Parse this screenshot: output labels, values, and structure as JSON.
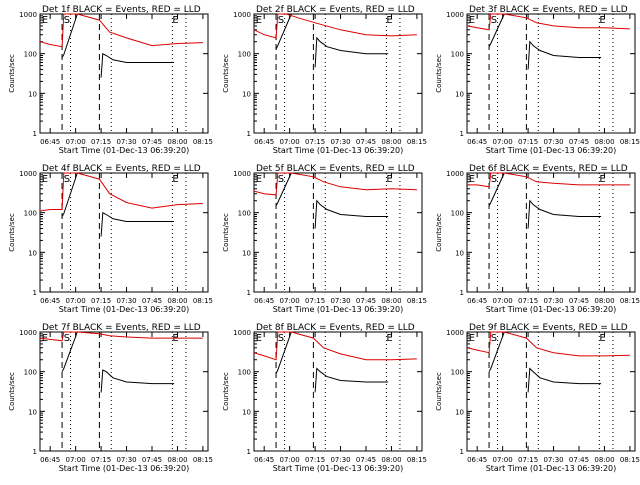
{
  "figure": {
    "panels": [
      {
        "title": "Det 1f BLACK = Events, RED = LLD"
      },
      {
        "title": "Det 2f BLACK = Events, RED = LLD"
      },
      {
        "title": "Det 3f BLACK = Events, RED = LLD"
      },
      {
        "title": "Det 4f BLACK = Events, RED = LLD"
      },
      {
        "title": "Det 5f BLACK = Events, RED = LLD"
      },
      {
        "title": "Det 6f BLACK = Events, RED = LLD"
      },
      {
        "title": "Det 7f BLACK = Events, RED = LLD"
      },
      {
        "title": "Det 8f BLACK = Events, RED = LLD"
      },
      {
        "title": "Det 9f BLACK = Events, RED = LLD"
      }
    ],
    "xlabel": "Start Time (01-Dec-13 06:39:20)",
    "ylabel": "Counts/sec",
    "x_ticks": [
      "06:45",
      "07:00",
      "07:15",
      "07:30",
      "07:45",
      "08:00",
      "08:15"
    ],
    "y_ticks": [
      "1",
      "10",
      "100",
      "1000"
    ],
    "markers": [
      "E",
      "S",
      "E"
    ],
    "colors": {
      "events": "#000000",
      "lld": "#dd0000"
    }
  },
  "chart_data": [
    {
      "type": "line",
      "title": "Det 1f BLACK = Events, RED = LLD",
      "xlabel": "Start Time (01-Dec-13 06:39:20)",
      "ylabel": "Counts/sec",
      "yscale": "log",
      "ylim": [
        1,
        1000
      ],
      "xlim": [
        "06:39",
        "08:18"
      ],
      "series": [
        {
          "name": "Events",
          "color": "#000000",
          "x": [
            "06:52",
            "06:53",
            "07:01",
            "07:14",
            "07:15",
            "07:16",
            "07:18",
            "07:22",
            "07:30",
            "07:45",
            "07:58"
          ],
          "y": [
            80,
            95,
            1000,
            null,
            25,
            100,
            90,
            70,
            60,
            60,
            60
          ]
        },
        {
          "name": "LLD",
          "color": "#dd0000",
          "x": [
            "06:39",
            "06:45",
            "06:52",
            "06:53",
            "07:01",
            "07:14",
            "07:20",
            "07:30",
            "07:45",
            "08:00",
            "08:15"
          ],
          "y": [
            200,
            170,
            150,
            1000,
            1000,
            700,
            350,
            250,
            160,
            180,
            190
          ]
        }
      ]
    },
    {
      "type": "line",
      "title": "Det 2f BLACK = Events, RED = LLD",
      "xlabel": "Start Time (01-Dec-13 06:39:20)",
      "ylabel": "Counts/sec",
      "yscale": "log",
      "ylim": [
        1,
        1000
      ],
      "xlim": [
        "06:39",
        "08:18"
      ],
      "series": [
        {
          "name": "Events",
          "color": "#000000",
          "x": [
            "06:52",
            "06:53",
            "07:01",
            "07:14",
            "07:15",
            "07:16",
            "07:18",
            "07:22",
            "07:30",
            "07:45",
            "07:58"
          ],
          "y": [
            130,
            160,
            1000,
            null,
            45,
            250,
            200,
            150,
            120,
            100,
            100
          ]
        },
        {
          "name": "LLD",
          "color": "#dd0000",
          "x": [
            "06:39",
            "06:45",
            "06:52",
            "06:53",
            "06:58",
            "07:05",
            "07:15",
            "07:30",
            "07:45",
            "08:00",
            "08:15"
          ],
          "y": [
            400,
            300,
            250,
            1000,
            1000,
            800,
            600,
            400,
            300,
            280,
            300
          ]
        }
      ]
    },
    {
      "type": "line",
      "title": "Det 3f BLACK = Events, RED = LLD",
      "xlabel": "Start Time (01-Dec-13 06:39:20)",
      "ylabel": "Counts/sec",
      "yscale": "log",
      "ylim": [
        1,
        1000
      ],
      "xlim": [
        "06:39",
        "08:18"
      ],
      "series": [
        {
          "name": "Events",
          "color": "#000000",
          "x": [
            "06:52",
            "06:53",
            "07:01",
            "07:14",
            "07:15",
            "07:16",
            "07:18",
            "07:22",
            "07:30",
            "07:45",
            "07:58"
          ],
          "y": [
            150,
            180,
            1000,
            null,
            40,
            200,
            160,
            120,
            90,
            80,
            80
          ]
        },
        {
          "name": "LLD",
          "color": "#dd0000",
          "x": [
            "06:39",
            "06:45",
            "06:52",
            "06:53",
            "07:01",
            "07:14",
            "07:20",
            "07:30",
            "07:45",
            "08:00",
            "08:15"
          ],
          "y": [
            500,
            450,
            400,
            1000,
            1000,
            800,
            600,
            500,
            450,
            450,
            420
          ]
        }
      ]
    },
    {
      "type": "line",
      "title": "Det 4f BLACK = Events, RED = LLD",
      "xlabel": "Start Time (01-Dec-13 06:39:20)",
      "ylabel": "Counts/sec",
      "yscale": "log",
      "ylim": [
        1,
        1000
      ],
      "xlim": [
        "06:39",
        "08:18"
      ],
      "series": [
        {
          "name": "Events",
          "color": "#000000",
          "x": [
            "06:52",
            "06:53",
            "07:01",
            "07:14",
            "07:15",
            "07:16",
            "07:18",
            "07:22",
            "07:30",
            "07:45",
            "07:58"
          ],
          "y": [
            80,
            95,
            1000,
            null,
            25,
            100,
            90,
            70,
            60,
            60,
            60
          ]
        },
        {
          "name": "LLD",
          "color": "#dd0000",
          "x": [
            "06:39",
            "06:45",
            "06:52",
            "06:53",
            "07:01",
            "07:14",
            "07:20",
            "07:30",
            "07:45",
            "08:00",
            "08:15"
          ],
          "y": [
            110,
            120,
            120,
            1000,
            1000,
            700,
            300,
            180,
            130,
            160,
            170
          ]
        }
      ]
    },
    {
      "type": "line",
      "title": "Det 5f BLACK = Events, RED = LLD",
      "xlabel": "Start Time (01-Dec-13 06:39:20)",
      "ylabel": "Counts/sec",
      "yscale": "log",
      "ylim": [
        1,
        1000
      ],
      "xlim": [
        "06:39",
        "08:18"
      ],
      "series": [
        {
          "name": "Events",
          "color": "#000000",
          "x": [
            "06:52",
            "06:53",
            "07:01",
            "07:14",
            "07:15",
            "07:16",
            "07:18",
            "07:22",
            "07:30",
            "07:45",
            "07:58"
          ],
          "y": [
            150,
            180,
            1000,
            null,
            40,
            200,
            160,
            120,
            90,
            80,
            80
          ]
        },
        {
          "name": "LLD",
          "color": "#dd0000",
          "x": [
            "06:39",
            "06:45",
            "06:52",
            "06:53",
            "07:01",
            "07:14",
            "07:20",
            "07:30",
            "07:45",
            "08:00",
            "08:15"
          ],
          "y": [
            350,
            300,
            280,
            1000,
            1000,
            800,
            600,
            450,
            380,
            400,
            380
          ]
        }
      ]
    },
    {
      "type": "line",
      "title": "Det 6f BLACK = Events, RED = LLD",
      "xlabel": "Start Time (01-Dec-13 06:39:20)",
      "ylabel": "Counts/sec",
      "yscale": "log",
      "ylim": [
        1,
        1000
      ],
      "xlim": [
        "06:39",
        "08:18"
      ],
      "series": [
        {
          "name": "Events",
          "color": "#000000",
          "x": [
            "06:52",
            "06:53",
            "07:01",
            "07:14",
            "07:15",
            "07:16",
            "07:18",
            "07:22",
            "07:30",
            "07:45",
            "07:58"
          ],
          "y": [
            150,
            180,
            1000,
            null,
            40,
            200,
            160,
            120,
            90,
            80,
            80
          ]
        },
        {
          "name": "LLD",
          "color": "#dd0000",
          "x": [
            "06:39",
            "06:45",
            "06:52",
            "06:53",
            "07:01",
            "07:14",
            "07:20",
            "07:30",
            "07:45",
            "08:00",
            "08:15"
          ],
          "y": [
            500,
            500,
            450,
            1000,
            1000,
            800,
            600,
            550,
            500,
            500,
            500
          ]
        }
      ]
    },
    {
      "type": "line",
      "title": "Det 7f BLACK = Events, RED = LLD",
      "xlabel": "Start Time (01-Dec-13 06:39:20)",
      "ylabel": "Counts/sec",
      "yscale": "log",
      "ylim": [
        1,
        1000
      ],
      "xlim": [
        "06:39",
        "08:18"
      ],
      "series": [
        {
          "name": "Events",
          "color": "#000000",
          "x": [
            "06:52",
            "06:53",
            "07:01",
            "07:14",
            "07:15",
            "07:16",
            "07:18",
            "07:22",
            "07:30",
            "07:45",
            "07:58"
          ],
          "y": [
            100,
            120,
            1000,
            null,
            30,
            110,
            100,
            70,
            55,
            50,
            50
          ]
        },
        {
          "name": "LLD",
          "color": "#dd0000",
          "x": [
            "06:39",
            "06:45",
            "06:52",
            "06:53",
            "07:01",
            "07:14",
            "07:20",
            "07:30",
            "07:45",
            "08:00",
            "08:15"
          ],
          "y": [
            700,
            650,
            600,
            1000,
            1000,
            900,
            800,
            750,
            700,
            700,
            700
          ]
        }
      ]
    },
    {
      "type": "line",
      "title": "Det 8f BLACK = Events, RED = LLD",
      "xlabel": "Start Time (01-Dec-13 06:39:20)",
      "ylabel": "Counts/sec",
      "yscale": "log",
      "ylim": [
        1,
        1000
      ],
      "xlim": [
        "06:39",
        "08:18"
      ],
      "series": [
        {
          "name": "Events",
          "color": "#000000",
          "x": [
            "06:52",
            "06:53",
            "07:01",
            "07:14",
            "07:15",
            "07:16",
            "07:18",
            "07:22",
            "07:30",
            "07:45",
            "07:58"
          ],
          "y": [
            90,
            110,
            1000,
            null,
            30,
            120,
            100,
            75,
            60,
            55,
            55
          ]
        },
        {
          "name": "LLD",
          "color": "#dd0000",
          "x": [
            "06:39",
            "06:45",
            "06:52",
            "06:53",
            "07:01",
            "07:14",
            "07:20",
            "07:30",
            "07:45",
            "08:00",
            "08:15"
          ],
          "y": [
            300,
            250,
            200,
            1000,
            1000,
            700,
            400,
            280,
            200,
            200,
            210
          ]
        }
      ]
    },
    {
      "type": "line",
      "title": "Det 9f BLACK = Events, RED = LLD",
      "xlabel": "Start Time (01-Dec-13 06:39:20)",
      "ylabel": "Counts/sec",
      "yscale": "log",
      "ylim": [
        1,
        1000
      ],
      "xlim": [
        "06:39",
        "08:18"
      ],
      "series": [
        {
          "name": "Events",
          "color": "#000000",
          "x": [
            "06:52",
            "06:53",
            "07:01",
            "07:14",
            "07:15",
            "07:16",
            "07:18",
            "07:22",
            "07:30",
            "07:45",
            "07:58"
          ],
          "y": [
            100,
            120,
            1000,
            null,
            30,
            120,
            100,
            70,
            55,
            50,
            50
          ]
        },
        {
          "name": "LLD",
          "color": "#dd0000",
          "x": [
            "06:39",
            "06:45",
            "06:52",
            "06:53",
            "07:01",
            "07:14",
            "07:20",
            "07:30",
            "07:45",
            "08:00",
            "08:15"
          ],
          "y": [
            400,
            350,
            300,
            1000,
            1000,
            700,
            400,
            300,
            250,
            250,
            260
          ]
        }
      ]
    }
  ]
}
